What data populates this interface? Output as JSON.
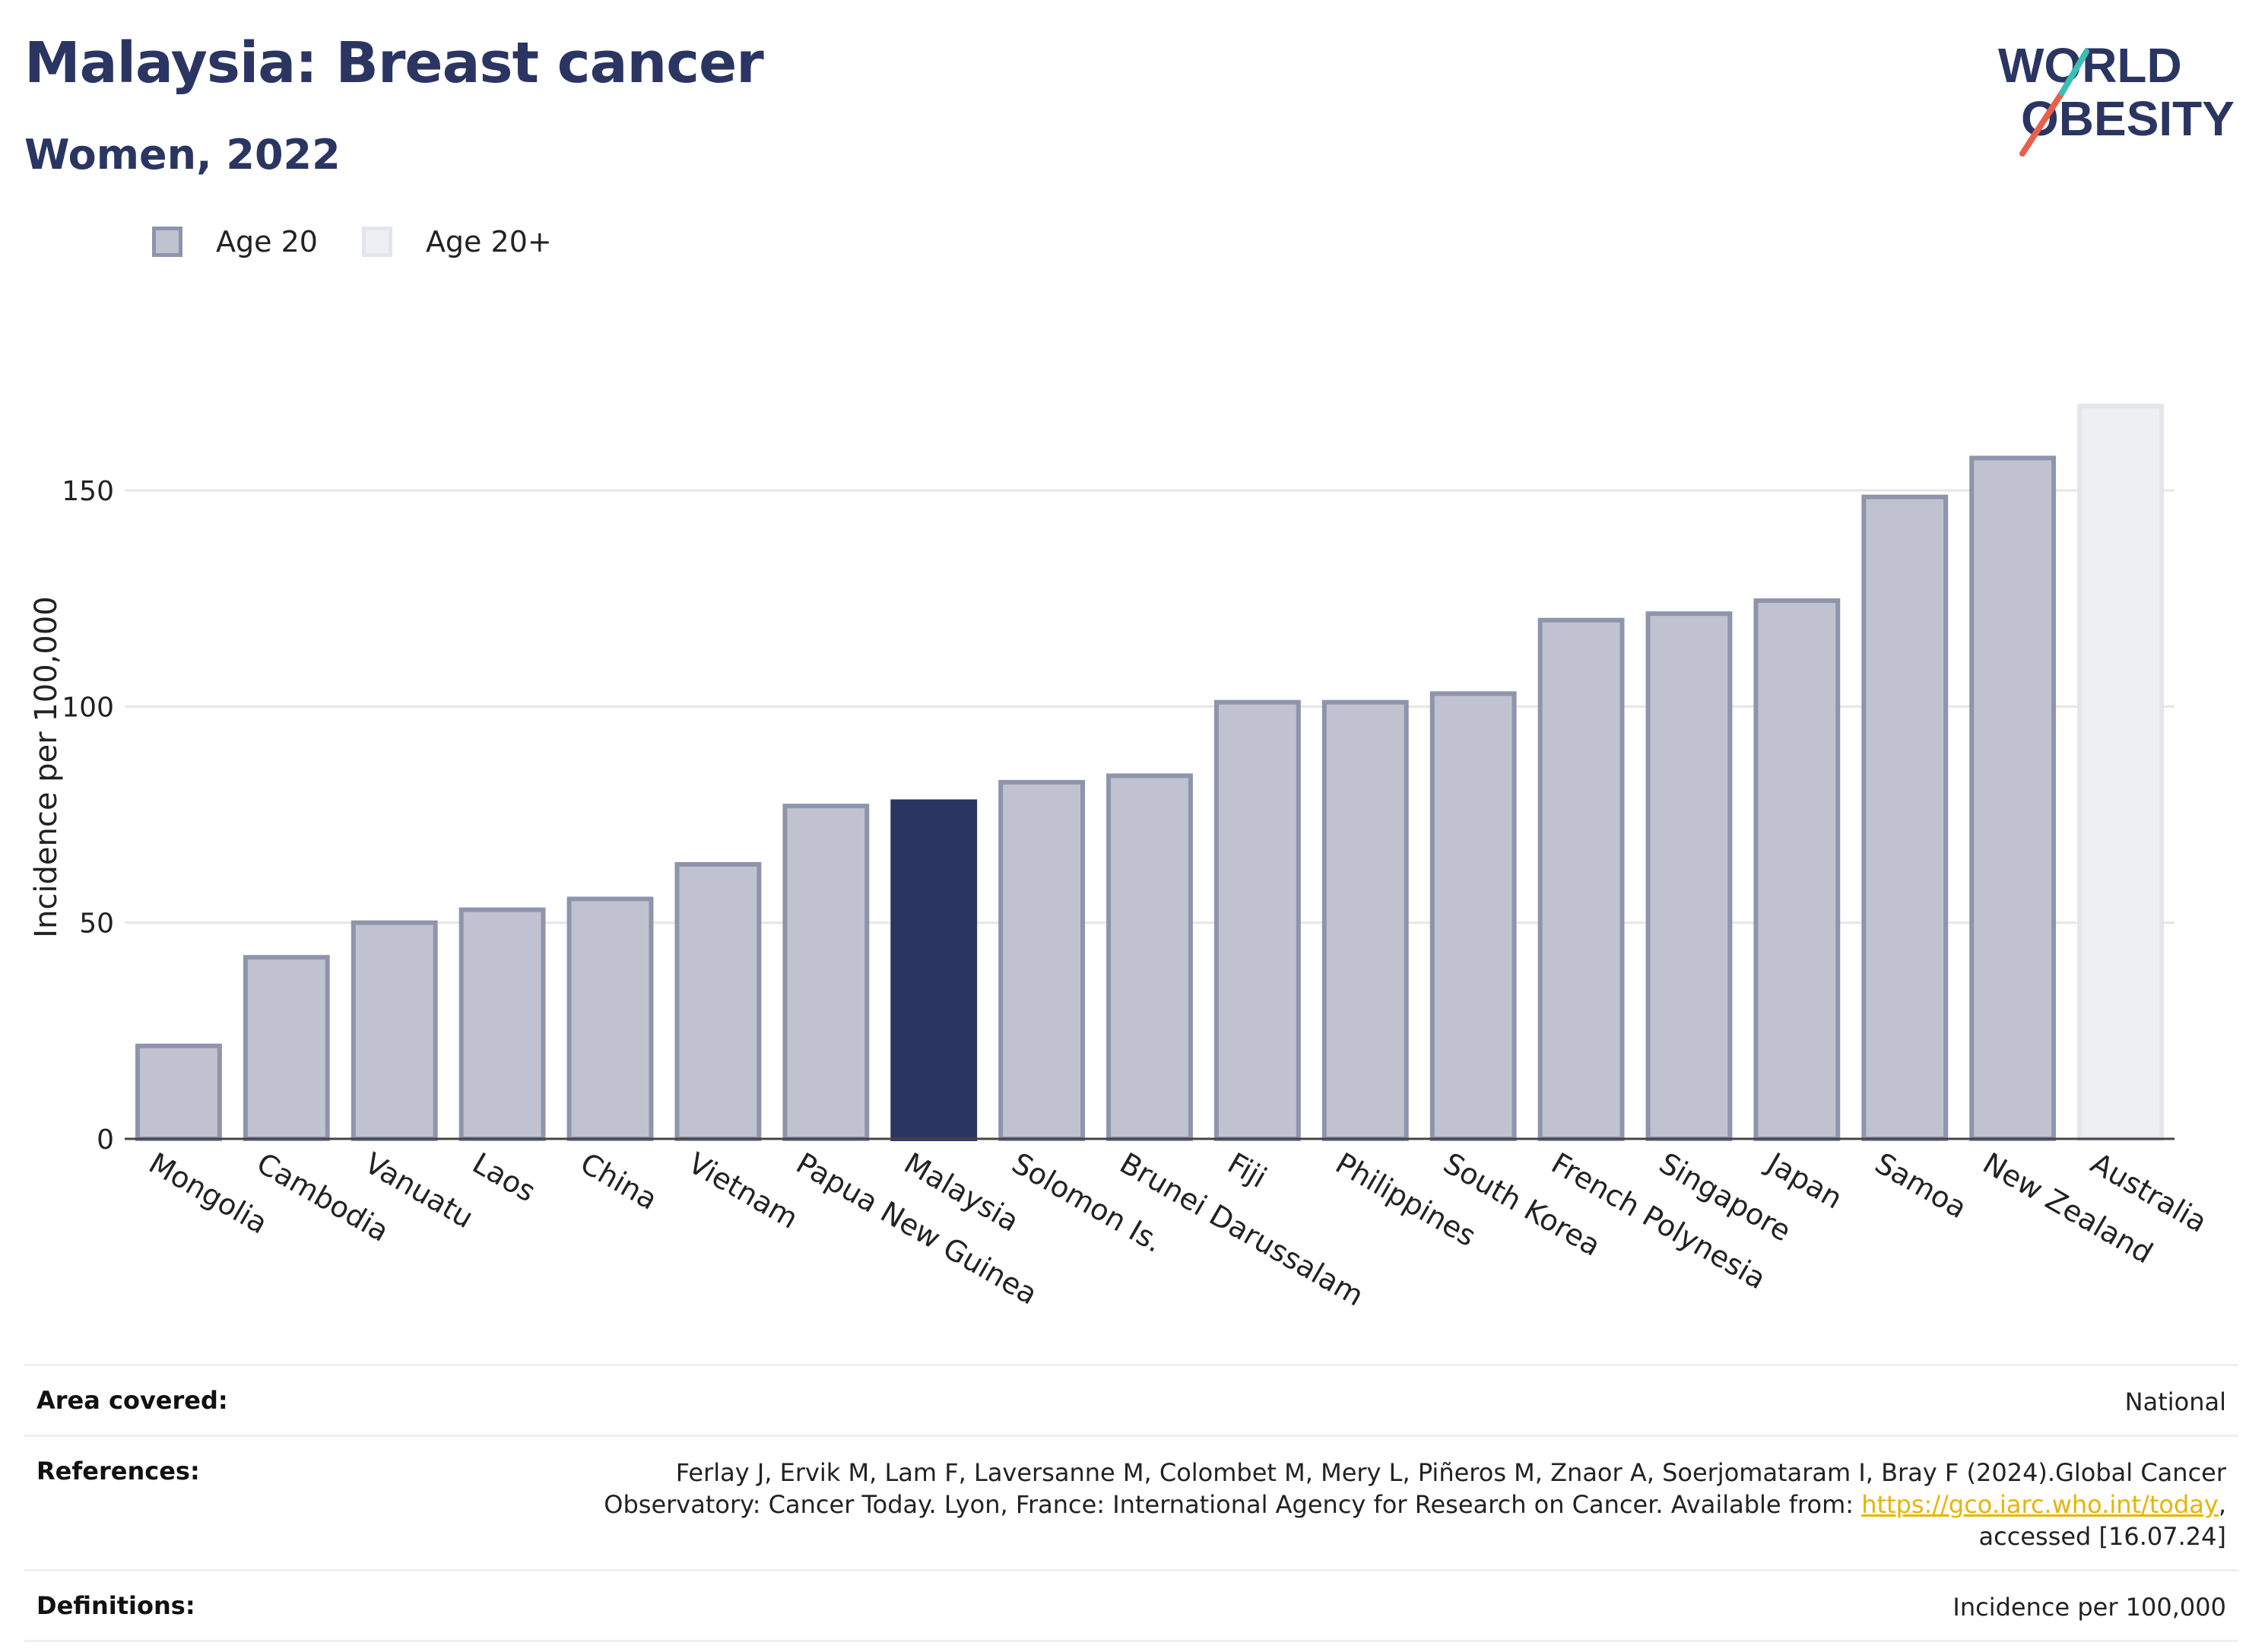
{
  "header": {
    "title": "Malaysia: Breast cancer",
    "subtitle": "Women, 2022"
  },
  "logo": {
    "line1": "WORLD",
    "line2": "OBESITY",
    "colors": {
      "text": "#2b3562",
      "slash_red": "#e8604c",
      "slash_teal": "#3bbfb3"
    }
  },
  "legend": {
    "items": [
      {
        "label": "Age 20",
        "color": "#c0c3cf",
        "border": "#8f94ad"
      },
      {
        "label": "Age 20+",
        "color": "#eeeff3",
        "border": "#e4e5ec"
      }
    ]
  },
  "chart_data": {
    "type": "bar",
    "ylabel": "Incidence per 100,000",
    "xlabel": "",
    "ylim": [
      0,
      172
    ],
    "yticks": [
      0,
      50,
      100,
      150
    ],
    "grid": true,
    "legend_position": "top-left",
    "highlight": "Malaysia",
    "colors": {
      "age20_fill": "#c0c3cf",
      "age20_border": "#8f94ad",
      "age20plus_fill": "#eeeff3",
      "age20plus_border": "#e4e5ec",
      "highlight": "#2b3562"
    },
    "categories": [
      "Mongolia",
      "Cambodia",
      "Vanuatu",
      "Laos",
      "China",
      "Vietnam",
      "Papua New Guinea",
      "Malaysia",
      "Solomon Is.",
      "Brunei Darussalam",
      "Fiji",
      "Philippines",
      "South Korea",
      "French Polynesia",
      "Singapore",
      "Japan",
      "Samoa",
      "New Zealand",
      "Australia"
    ],
    "values": [
      21.5,
      42,
      50,
      53,
      55.5,
      63.5,
      77,
      78,
      82.5,
      84,
      101,
      101,
      103,
      120,
      121.5,
      124.5,
      148.5,
      157.5,
      169.5
    ],
    "groups": [
      "Age 20",
      "Age 20",
      "Age 20",
      "Age 20",
      "Age 20",
      "Age 20",
      "Age 20",
      "Age 20",
      "Age 20",
      "Age 20",
      "Age 20",
      "Age 20",
      "Age 20",
      "Age 20",
      "Age 20",
      "Age 20",
      "Age 20",
      "Age 20",
      "Age 20+"
    ]
  },
  "footer": {
    "area_label": "Area covered:",
    "area_value": "National",
    "references_label": "References:",
    "references_line1": "Ferlay J, Ervik M, Lam F, Laversanne M, Colombet M, Mery L, Piñeros M, Znaor A, Soerjomataram I, Bray F (2024).Global Cancer",
    "references_line2_prefix": "Observatory: Cancer Today. Lyon, France: International Agency for Research on Cancer. Available from: ",
    "references_link": "https://gco.iarc.who.int/today",
    "references_line2_suffix": ",",
    "references_line3": "accessed [16.07.24]",
    "definitions_label": "Definitions:",
    "definitions_value": "Incidence per 100,000"
  }
}
